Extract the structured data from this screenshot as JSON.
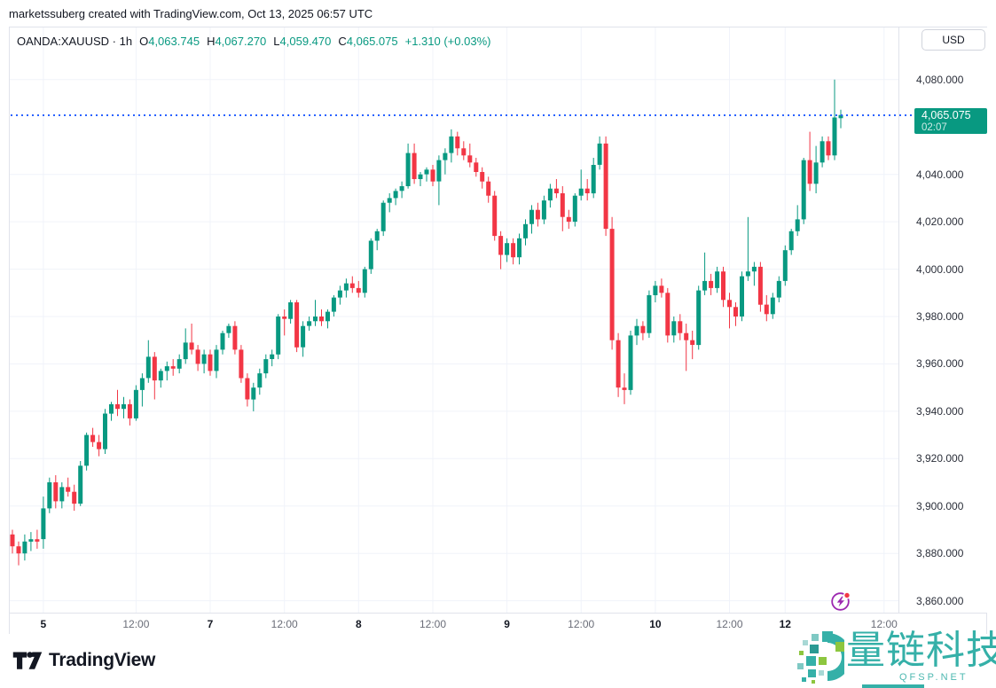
{
  "attribution": "marketssuberg created with TradingView.com, Oct 13, 2025 06:57 UTC",
  "legend": {
    "symbol": "OANDA:XAUUSD",
    "separator": "·",
    "interval": "1h",
    "open_label": "O",
    "open": "4,063.745",
    "high_label": "H",
    "high": "4,067.270",
    "low_label": "L",
    "low": "4,059.470",
    "close_label": "C",
    "close": "4,065.075",
    "change": "+1.310 (+0.03%)"
  },
  "currency_button": "USD",
  "last_price": {
    "value": "4,065.075",
    "countdown": "02:07",
    "price": 4065.075
  },
  "branding": {
    "name": "TradingView",
    "logo_icon": "tradingview-mark"
  },
  "watermark": {
    "title": "量链科技",
    "subtitle": "QFSP.NET",
    "logo_icon": "mosaic-circle-logo",
    "color": "#35b0a8"
  },
  "icons": {
    "flash": "lightning-bolt-in-circle-with-red-dot"
  },
  "colors": {
    "up": "#089981",
    "down": "#F23645",
    "grid": "#F0F3FA",
    "price_line": "#2962FF",
    "badge_bg": "#089981",
    "axis_text": "#2a2e39"
  },
  "chart_data": {
    "type": "candlestick",
    "symbol": "OANDA:XAUUSD",
    "timeframe": "1h",
    "title": "XAUUSD 1h candlestick chart",
    "ylim": [
      3855,
      4102
    ],
    "grid": true,
    "last_price": 4065.075,
    "y_ticks": [
      {
        "label": "4,080.000",
        "price": 4080
      },
      {
        "label": "4,040.000",
        "price": 4040
      },
      {
        "label": "4,020.000",
        "price": 4020
      },
      {
        "label": "4,000.000",
        "price": 4000
      },
      {
        "label": "3,980.000",
        "price": 3980
      },
      {
        "label": "3,960.000",
        "price": 3960
      },
      {
        "label": "3,940.000",
        "price": 3940
      },
      {
        "label": "3,920.000",
        "price": 3920
      },
      {
        "label": "3,900.000",
        "price": 3900
      },
      {
        "label": "3,880.000",
        "price": 3880
      },
      {
        "label": "3,860.000",
        "price": 3860
      }
    ],
    "x_ticks": [
      {
        "bar": 6,
        "label": "5",
        "major": true
      },
      {
        "bar": 21,
        "label": "12:00",
        "major": false
      },
      {
        "bar": 33,
        "label": "7",
        "major": true
      },
      {
        "bar": 45,
        "label": "12:00",
        "major": false
      },
      {
        "bar": 57,
        "label": "8",
        "major": true
      },
      {
        "bar": 69,
        "label": "12:00",
        "major": false
      },
      {
        "bar": 81,
        "label": "9",
        "major": true
      },
      {
        "bar": 93,
        "label": "12:00",
        "major": false
      },
      {
        "bar": 105,
        "label": "10",
        "major": true
      },
      {
        "bar": 117,
        "label": "12:00",
        "major": false
      },
      {
        "bar": 126,
        "label": "12",
        "major": true
      },
      {
        "bar": 142,
        "label": "12:00",
        "major": false
      }
    ],
    "candles": [
      [
        "10-03 19:00",
        3888,
        3890,
        3880,
        3883
      ],
      [
        "10-03 20:00",
        3883,
        3885,
        3875,
        3880
      ],
      [
        "10-03 21:00",
        3880,
        3888,
        3877,
        3885
      ],
      [
        "10-03 22:00",
        3885,
        3889,
        3881,
        3886
      ],
      [
        "10-03 23:00",
        3886,
        3890,
        3882,
        3885
      ],
      [
        "10-05 21:00",
        3886,
        3904,
        3882,
        3899
      ],
      [
        "10-05 22:00",
        3899,
        3912,
        3897,
        3910
      ],
      [
        "10-05 23:00",
        3910,
        3913,
        3899,
        3902
      ],
      [
        "10-06 00:00",
        3902,
        3910,
        3899,
        3908
      ],
      [
        "10-06 01:00",
        3908,
        3912,
        3904,
        3906
      ],
      [
        "10-06 02:00",
        3906,
        3909,
        3898,
        3901
      ],
      [
        "10-06 03:00",
        3901,
        3919,
        3900,
        3917
      ],
      [
        "10-06 04:00",
        3917,
        3931,
        3915,
        3930
      ],
      [
        "10-06 05:00",
        3930,
        3933,
        3925,
        3927
      ],
      [
        "10-06 06:00",
        3927,
        3930,
        3921,
        3924
      ],
      [
        "10-06 07:00",
        3924,
        3941,
        3922,
        3939
      ],
      [
        "10-06 08:00",
        3939,
        3944,
        3936,
        3943
      ],
      [
        "10-06 09:00",
        3943,
        3949,
        3938,
        3941
      ],
      [
        "10-06 10:00",
        3941,
        3946,
        3937,
        3943
      ],
      [
        "10-06 11:00",
        3943,
        3945,
        3934,
        3937
      ],
      [
        "10-06 12:00",
        3937,
        3951,
        3936,
        3949
      ],
      [
        "10-06 13:00",
        3949,
        3956,
        3942,
        3954
      ],
      [
        "10-06 14:00",
        3954,
        3970,
        3952,
        3963
      ],
      [
        "10-06 15:00",
        3963,
        3965,
        3945,
        3953
      ],
      [
        "10-06 16:00",
        3953,
        3958,
        3950,
        3957
      ],
      [
        "10-06 17:00",
        3957,
        3961,
        3953,
        3959
      ],
      [
        "10-06 18:00",
        3959,
        3962,
        3955,
        3958
      ],
      [
        "10-06 19:00",
        3958,
        3964,
        3956,
        3962
      ],
      [
        "10-06 20:00",
        3962,
        3975,
        3960,
        3969
      ],
      [
        "10-06 21:00",
        3969,
        3977,
        3964,
        3966
      ],
      [
        "10-06 22:00",
        3966,
        3968,
        3957,
        3960
      ],
      [
        "10-06 23:00",
        3960,
        3966,
        3956,
        3964
      ],
      [
        "10-07 00:00",
        3964,
        3966,
        3955,
        3957
      ],
      [
        "10-07 01:00",
        3957,
        3968,
        3954,
        3966
      ],
      [
        "10-07 02:00",
        3966,
        3974,
        3964,
        3973
      ],
      [
        "10-07 03:00",
        3973,
        3977,
        3971,
        3976
      ],
      [
        "10-07 04:00",
        3976,
        3978,
        3964,
        3966
      ],
      [
        "10-07 05:00",
        3966,
        3968,
        3952,
        3954
      ],
      [
        "10-07 06:00",
        3954,
        3956,
        3942,
        3945
      ],
      [
        "10-07 07:00",
        3945,
        3952,
        3940,
        3950
      ],
      [
        "10-07 08:00",
        3950,
        3958,
        3947,
        3956
      ],
      [
        "10-07 09:00",
        3956,
        3964,
        3954,
        3962
      ],
      [
        "10-07 10:00",
        3962,
        3966,
        3959,
        3964
      ],
      [
        "10-07 11:00",
        3964,
        3981,
        3962,
        3980
      ],
      [
        "10-07 12:00",
        3980,
        3983,
        3972,
        3979
      ],
      [
        "10-07 13:00",
        3979,
        3987,
        3977,
        3986
      ],
      [
        "10-07 14:00",
        3986,
        3987,
        3965,
        3967
      ],
      [
        "10-07 15:00",
        3967,
        3978,
        3963,
        3976
      ],
      [
        "10-07 16:00",
        3976,
        3980,
        3974,
        3978
      ],
      [
        "10-07 17:00",
        3978,
        3987,
        3976,
        3980
      ],
      [
        "10-07 18:00",
        3980,
        3983,
        3976,
        3978
      ],
      [
        "10-07 19:00",
        3978,
        3983,
        3975,
        3982
      ],
      [
        "10-07 20:00",
        3982,
        3989,
        3980,
        3988
      ],
      [
        "10-07 21:00",
        3988,
        3993,
        3985,
        3991
      ],
      [
        "10-07 22:00",
        3991,
        3996,
        3988,
        3994
      ],
      [
        "10-07 23:00",
        3994,
        3997,
        3990,
        3992
      ],
      [
        "10-08 00:00",
        3992,
        3995,
        3988,
        3990
      ],
      [
        "10-08 01:00",
        3990,
        4001,
        3988,
        4000
      ],
      [
        "10-08 02:00",
        4000,
        4013,
        3998,
        4012
      ],
      [
        "10-08 03:00",
        4012,
        4017,
        4008,
        4016
      ],
      [
        "10-08 04:00",
        4016,
        4029,
        4014,
        4028
      ],
      [
        "10-08 05:00",
        4028,
        4032,
        4024,
        4030
      ],
      [
        "10-08 06:00",
        4030,
        4034,
        4027,
        4033
      ],
      [
        "10-08 07:00",
        4033,
        4037,
        4030,
        4035
      ],
      [
        "10-08 08:00",
        4035,
        4053,
        4034,
        4049
      ],
      [
        "10-08 09:00",
        4049,
        4053,
        4036,
        4038
      ],
      [
        "10-08 10:00",
        4038,
        4041,
        4035,
        4040
      ],
      [
        "10-08 11:00",
        4040,
        4043,
        4037,
        4042
      ],
      [
        "10-08 12:00",
        4042,
        4044,
        4035,
        4037
      ],
      [
        "10-08 13:00",
        4037,
        4048,
        4027,
        4046
      ],
      [
        "10-08 14:00",
        4046,
        4051,
        4040,
        4049
      ],
      [
        "10-08 15:00",
        4049,
        4059,
        4045,
        4056
      ],
      [
        "10-08 16:00",
        4056,
        4058,
        4048,
        4051
      ],
      [
        "10-08 17:00",
        4051,
        4054,
        4046,
        4048
      ],
      [
        "10-08 18:00",
        4048,
        4053,
        4043,
        4045
      ],
      [
        "10-08 19:00",
        4045,
        4047,
        4039,
        4041
      ],
      [
        "10-08 20:00",
        4041,
        4043,
        4034,
        4037
      ],
      [
        "10-08 21:00",
        4037,
        4039,
        4028,
        4031
      ],
      [
        "10-08 22:00",
        4031,
        4033,
        4012,
        4014
      ],
      [
        "10-08 23:00",
        4014,
        4016,
        4000,
        4006
      ],
      [
        "10-09 00:00",
        4006,
        4013,
        4003,
        4011
      ],
      [
        "10-09 01:00",
        4011,
        4013,
        4002,
        4005
      ],
      [
        "10-09 02:00",
        4005,
        4015,
        4002,
        4013
      ],
      [
        "10-09 03:00",
        4013,
        4021,
        4010,
        4019
      ],
      [
        "10-09 04:00",
        4019,
        4027,
        4015,
        4025
      ],
      [
        "10-09 05:00",
        4025,
        4028,
        4018,
        4021
      ],
      [
        "10-09 06:00",
        4021,
        4031,
        4019,
        4029
      ],
      [
        "10-09 07:00",
        4029,
        4036,
        4026,
        4034
      ],
      [
        "10-09 08:00",
        4034,
        4038,
        4030,
        4032
      ],
      [
        "10-09 09:00",
        4032,
        4035,
        4016,
        4022
      ],
      [
        "10-09 10:00",
        4022,
        4025,
        4017,
        4020
      ],
      [
        "10-09 11:00",
        4020,
        4032,
        4018,
        4031
      ],
      [
        "10-09 12:00",
        4031,
        4042,
        4029,
        4034
      ],
      [
        "10-09 13:00",
        4034,
        4038,
        4029,
        4032
      ],
      [
        "10-09 14:00",
        4032,
        4047,
        4030,
        4044
      ],
      [
        "10-09 15:00",
        4044,
        4056,
        4042,
        4053
      ],
      [
        "10-09 16:00",
        4053,
        4056,
        4014,
        4017
      ],
      [
        "10-09 17:00",
        4017,
        4022,
        3966,
        3970
      ],
      [
        "10-09 18:00",
        3970,
        3973,
        3946,
        3950
      ],
      [
        "10-09 19:00",
        3950,
        3956,
        3943,
        3949
      ],
      [
        "10-09 20:00",
        3949,
        3974,
        3947,
        3972
      ],
      [
        "10-09 21:00",
        3972,
        3979,
        3968,
        3976
      ],
      [
        "10-09 22:00",
        3976,
        3978,
        3970,
        3973
      ],
      [
        "10-09 23:00",
        3973,
        3991,
        3971,
        3989
      ],
      [
        "10-10 00:00",
        3989,
        3995,
        3986,
        3993
      ],
      [
        "10-10 01:00",
        3993,
        3996,
        3988,
        3990
      ],
      [
        "10-10 02:00",
        3990,
        3992,
        3969,
        3972
      ],
      [
        "10-10 03:00",
        3972,
        3980,
        3969,
        3978
      ],
      [
        "10-10 04:00",
        3978,
        3981,
        3970,
        3973
      ],
      [
        "10-10 05:00",
        3973,
        3977,
        3957,
        3970
      ],
      [
        "10-10 06:00",
        3970,
        3974,
        3962,
        3968
      ],
      [
        "10-10 07:00",
        3968,
        3993,
        3966,
        3991
      ],
      [
        "10-10 08:00",
        3991,
        4007,
        3989,
        3995
      ],
      [
        "10-10 09:00",
        3995,
        3998,
        3989,
        3992
      ],
      [
        "10-10 10:00",
        3992,
        4001,
        3990,
        3999
      ],
      [
        "10-10 11:00",
        3999,
        4001,
        3984,
        3987
      ],
      [
        "10-10 12:00",
        3987,
        3990,
        3975,
        3984
      ],
      [
        "10-10 13:00",
        3984,
        3986,
        3976,
        3980
      ],
      [
        "10-10 14:00",
        3980,
        3999,
        3978,
        3997
      ],
      [
        "10-10 15:00",
        3997,
        4022,
        3995,
        3999
      ],
      [
        "10-10 16:00",
        3999,
        4003,
        3993,
        4001
      ],
      [
        "10-10 17:00",
        4001,
        4003,
        3982,
        3985
      ],
      [
        "10-10 18:00",
        3985,
        3989,
        3978,
        3981
      ],
      [
        "10-10 19:00",
        3981,
        3990,
        3979,
        3988
      ],
      [
        "10-10 20:00",
        3988,
        3997,
        3986,
        3995
      ],
      [
        "10-12 21:00",
        3995,
        4010,
        3993,
        4008
      ],
      [
        "10-12 22:00",
        4008,
        4017,
        4006,
        4016
      ],
      [
        "10-12 23:00",
        4016,
        4027,
        4014,
        4021
      ],
      [
        "10-13 00:00",
        4021,
        4047,
        4019,
        4046
      ],
      [
        "10-13 01:00",
        4046,
        4058,
        4033,
        4036
      ],
      [
        "10-13 02:00",
        4036,
        4052,
        4032,
        4045
      ],
      [
        "10-13 03:00",
        4045,
        4056,
        4043,
        4054
      ],
      [
        "10-13 04:00",
        4054,
        4056,
        4046,
        4048
      ],
      [
        "10-13 05:00",
        4048,
        4080,
        4046,
        4064
      ],
      [
        "10-13 06:00",
        4063.745,
        4067.27,
        4059.47,
        4065.075
      ]
    ]
  }
}
